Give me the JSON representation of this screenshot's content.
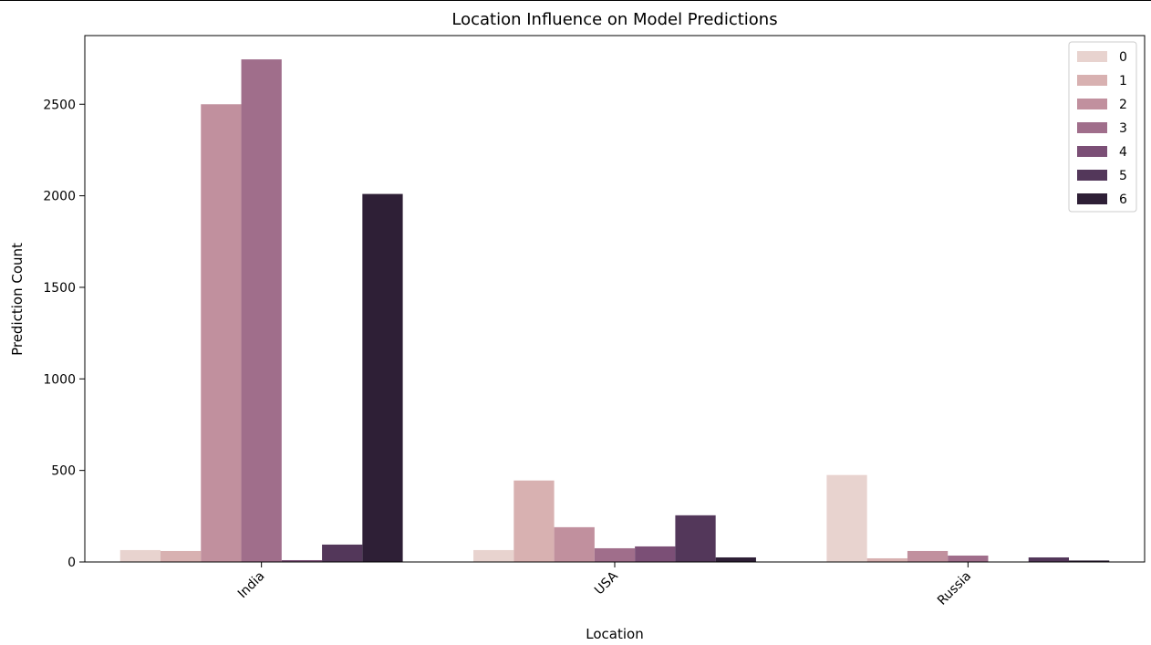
{
  "chart_data": {
    "type": "bar",
    "title": "Location Influence on Model Predictions",
    "xlabel": "Location",
    "ylabel": "Prediction Count",
    "categories": [
      "India",
      "USA",
      "Russia"
    ],
    "ylim": [
      0,
      2875
    ],
    "yticks": [
      0,
      500,
      1000,
      1500,
      2000,
      2500
    ],
    "grid": false,
    "legend": "top-right",
    "series": [
      {
        "name": "0",
        "color": "#e8d3cf",
        "values": [
          65,
          65,
          475
        ]
      },
      {
        "name": "1",
        "color": "#d8b1b1",
        "values": [
          60,
          445,
          20
        ]
      },
      {
        "name": "2",
        "color": "#c1909e",
        "values": [
          2500,
          190,
          60
        ]
      },
      {
        "name": "3",
        "color": "#a06e8b",
        "values": [
          2745,
          75,
          35
        ]
      },
      {
        "name": "4",
        "color": "#7b4f76",
        "values": [
          10,
          85,
          0
        ]
      },
      {
        "name": "5",
        "color": "#53375a",
        "values": [
          95,
          255,
          25
        ]
      },
      {
        "name": "6",
        "color": "#2e1f36",
        "values": [
          2010,
          25,
          8
        ]
      }
    ]
  }
}
